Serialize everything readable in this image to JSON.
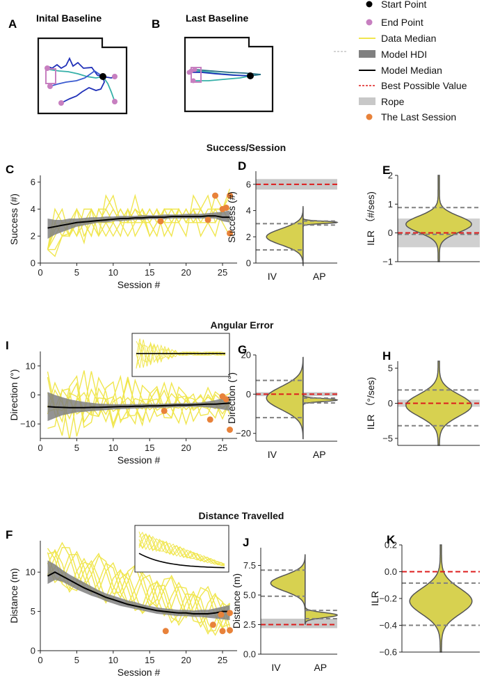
{
  "colors": {
    "yellow": "#f0e64e",
    "gray": "#808080",
    "black": "#000000",
    "red": "#dd1c1c",
    "rope": "#c8c8c8",
    "orange": "#e8823a",
    "violin": "#d7d150",
    "end": "#c77fc0",
    "dkblue": "#2030b8",
    "teal": "#35b0a8"
  },
  "panels": {
    "A": {
      "letter": "A",
      "title": "Inital Baseline"
    },
    "B": {
      "letter": "B",
      "title": "Last Baseline"
    },
    "C": "C",
    "D": "D",
    "E": "E",
    "I": "I",
    "G": "G",
    "H": "H",
    "F": "F",
    "J": "J",
    "K": "K"
  },
  "legend": [
    {
      "label": "Start Point",
      "kind": "dot-black"
    },
    {
      "label": "End Point",
      "kind": "dot-pink"
    },
    {
      "label": "Data Median",
      "kind": "line-yellow"
    },
    {
      "label": "Model HDI",
      "kind": "band-gray"
    },
    {
      "label": "Model Median",
      "kind": "line-black"
    },
    {
      "label": "Best Possible Value",
      "kind": "dash-red"
    },
    {
      "label": "Rope",
      "kind": "band-light"
    },
    {
      "label": "The Last Session",
      "kind": "dot-orange"
    }
  ],
  "sections": {
    "success": "Success/Session",
    "angular": "Angular Error",
    "distance": "Distance Travelled"
  },
  "chart_data": [
    {
      "id": "C",
      "type": "line",
      "title": "Success/Session",
      "xlabel": "Session #",
      "ylabel": "Success (#)",
      "xlim": [
        0,
        27
      ],
      "ylim": [
        0,
        6.5
      ],
      "xticks": [
        0,
        5,
        10,
        15,
        20,
        25
      ],
      "yticks": [
        0,
        2,
        4,
        6
      ],
      "data_lines": [
        [
          1,
          3,
          2,
          2.2,
          3,
          1.5,
          4,
          2,
          5,
          4,
          3,
          3,
          4,
          3.5,
          2,
          3,
          4,
          4,
          3,
          2,
          5,
          4,
          3,
          4,
          4,
          5.5
        ],
        [
          1,
          1,
          2,
          3,
          2,
          3,
          2,
          4,
          3,
          2,
          3,
          4,
          2,
          3,
          4,
          3,
          3,
          2,
          4,
          3,
          3,
          4,
          5,
          3,
          4,
          4
        ],
        [
          1,
          4,
          3,
          2,
          4,
          3,
          3,
          2,
          3,
          4,
          3,
          2,
          3,
          4,
          2,
          3,
          4,
          3,
          4,
          3,
          4,
          2,
          3,
          4,
          3,
          2
        ],
        [
          1,
          2,
          3,
          3,
          2,
          4,
          4,
          3,
          2,
          3,
          4,
          3,
          5,
          3,
          3,
          4,
          2,
          3,
          3,
          4,
          3,
          4,
          3,
          5,
          4,
          3
        ],
        [
          1,
          3,
          4,
          2,
          3,
          3,
          2,
          4,
          4,
          3,
          2,
          4,
          3,
          3,
          4,
          3,
          3,
          4,
          4,
          3,
          4,
          3,
          4,
          4,
          4,
          4
        ],
        [
          1,
          2.5,
          3,
          3,
          4,
          2,
          3,
          3,
          4,
          5,
          3,
          3,
          4,
          3,
          3,
          2,
          4,
          4,
          3,
          4,
          3,
          3,
          3,
          3,
          4,
          5
        ],
        [
          1,
          0.5,
          2,
          2,
          3,
          3,
          4,
          3,
          3,
          3,
          4,
          3,
          3,
          4,
          3,
          4,
          3,
          3,
          4,
          3,
          4,
          4,
          3,
          2,
          4,
          4
        ]
      ],
      "model_median": [
        2.6,
        2.7,
        2.8,
        2.9,
        3,
        3.05,
        3.1,
        3.15,
        3.2,
        3.25,
        3.3,
        3.3,
        3.35,
        3.35,
        3.4,
        3.4,
        3.4,
        3.45,
        3.45,
        3.45,
        3.45,
        3.45,
        3.5,
        3.5,
        3.4,
        3.4
      ],
      "hdi_low": [
        1.8,
        2.1,
        2.3,
        2.5,
        2.7,
        2.8,
        2.9,
        3,
        3,
        3.1,
        3.1,
        3.15,
        3.2,
        3.2,
        3.25,
        3.25,
        3.25,
        3.3,
        3.3,
        3.3,
        3.3,
        3.3,
        3.3,
        3.3,
        3.1,
        3
      ],
      "hdi_high": [
        3.3,
        3.2,
        3.2,
        3.3,
        3.3,
        3.35,
        3.4,
        3.4,
        3.45,
        3.45,
        3.5,
        3.5,
        3.5,
        3.55,
        3.55,
        3.55,
        3.6,
        3.6,
        3.6,
        3.65,
        3.65,
        3.65,
        3.7,
        3.75,
        3.8,
        3.9
      ],
      "last_session": [
        [
          16.5,
          3.1
        ],
        [
          23,
          3.2
        ],
        [
          24,
          5
        ],
        [
          25,
          4
        ],
        [
          25.5,
          4.1
        ],
        [
          26,
          5
        ],
        [
          26,
          2.2
        ]
      ]
    },
    {
      "id": "D",
      "type": "violin",
      "xlabel_categories": [
        "IV",
        "AP"
      ],
      "ylabel": "Success (#)",
      "ylim": [
        0,
        7
      ],
      "yticks": [
        0,
        2,
        4,
        6
      ],
      "best_value": 6,
      "rope": [
        5.6,
        6.4
      ],
      "iv_hdi": [
        1,
        3
      ],
      "ap_hdi": [
        2.9,
        3.2
      ],
      "iv_center": 2,
      "ap_center": 3.1
    },
    {
      "id": "E",
      "type": "violin",
      "ylabel": "ILR （#/ses)",
      "ylim": [
        -1,
        2
      ],
      "yticks": [
        -1,
        0,
        1,
        2
      ],
      "best_value": 0,
      "rope": [
        -0.5,
        0.5
      ],
      "hdi": [
        -0.05,
        0.88
      ],
      "center": 0.3
    },
    {
      "id": "I",
      "type": "line",
      "title": "Angular Error",
      "xlabel": "Session #",
      "ylabel": "Direction (°)",
      "xlim": [
        0,
        27
      ],
      "ylim": [
        -15,
        15
      ],
      "xticks": [
        0,
        5,
        10,
        15,
        20,
        25
      ],
      "yticks": [
        -10,
        0,
        10
      ],
      "model_median": [
        -4,
        -4.2,
        -4.3,
        -4.4,
        -4.4,
        -4.4,
        -4.3,
        -4.3,
        -4.2,
        -4.1,
        -4,
        -4,
        -3.9,
        -3.9,
        -3.8,
        -3.8,
        -3.7,
        -3.6,
        -3.5,
        -3.5,
        -3.4,
        -3.3,
        -3.2,
        -3.2,
        -3,
        -2.8
      ],
      "hdi_low": [
        -9,
        -8,
        -7,
        -6.5,
        -6,
        -5.8,
        -5.6,
        -5.4,
        -5.2,
        -5,
        -4.9,
        -4.8,
        -4.7,
        -4.6,
        -4.5,
        -4.5,
        -4.4,
        -4.3,
        -4.2,
        -4.2,
        -4.1,
        -4.1,
        -4.3,
        -4.6,
        -5,
        -5.5
      ],
      "hdi_high": [
        1,
        0,
        -0.8,
        -1.5,
        -2,
        -2.4,
        -2.7,
        -3,
        -3.1,
        -3.2,
        -3.2,
        -3.2,
        -3.2,
        -3.1,
        -3.1,
        -3.1,
        -3,
        -2.9,
        -2.8,
        -2.8,
        -2.7,
        -2.6,
        -2.2,
        -1.8,
        -1.2,
        -0.5
      ],
      "last_session": [
        [
          17,
          -5.5
        ],
        [
          23.3,
          -8.5
        ],
        [
          25,
          -0.5
        ],
        [
          25.5,
          -1.5
        ],
        [
          26,
          -12
        ]
      ],
      "inset": "I-inset"
    },
    {
      "id": "G",
      "type": "violin",
      "xlabel_categories": [
        "IV",
        "AP"
      ],
      "ylabel": "Direction (°)",
      "ylim": [
        -24,
        20
      ],
      "yticks": [
        -20,
        0,
        20
      ],
      "best_value": 0,
      "rope": [
        -1,
        1
      ],
      "iv_hdi": [
        -12,
        7
      ],
      "ap_hdi": [
        -4.5,
        -2
      ],
      "iv_center": -2,
      "ap_center": -3
    },
    {
      "id": "H",
      "type": "violin",
      "ylabel": "ILR （°/ses)",
      "ylim": [
        -6,
        6
      ],
      "yticks": [
        -5,
        0,
        5
      ],
      "best_value": 0,
      "rope": [
        -0.5,
        0.5
      ],
      "hdi": [
        -3.2,
        1.9
      ],
      "center": -0.3
    },
    {
      "id": "F",
      "type": "line",
      "title": "Distance Travelled",
      "xlabel": "Session #",
      "ylabel": "Distance (m)",
      "xlim": [
        0,
        27
      ],
      "ylim": [
        0,
        14
      ],
      "xticks": [
        0,
        5,
        10,
        15,
        20,
        25
      ],
      "yticks": [
        0,
        5,
        10
      ],
      "model_median": [
        9.5,
        10,
        9.5,
        9,
        8.5,
        8,
        7.6,
        7.2,
        6.8,
        6.5,
        6.2,
        5.9,
        5.7,
        5.5,
        5.3,
        5.1,
        5,
        4.9,
        4.8,
        4.8,
        4.7,
        4.7,
        4.7,
        4.8,
        5,
        5
      ],
      "hdi_low": [
        8.5,
        9,
        8.8,
        8.3,
        7.8,
        7.4,
        7,
        6.7,
        6.3,
        6,
        5.7,
        5.5,
        5.3,
        5.1,
        4.9,
        4.7,
        4.6,
        4.5,
        4.4,
        4.4,
        4.3,
        4.3,
        4.2,
        4.1,
        4,
        3.9
      ],
      "hdi_high": [
        11.5,
        11,
        10.3,
        9.7,
        9.2,
        8.7,
        8.2,
        7.7,
        7.3,
        7,
        6.7,
        6.4,
        6.2,
        5.9,
        5.7,
        5.5,
        5.4,
        5.3,
        5.2,
        5.2,
        5.1,
        5.2,
        5.2,
        5.4,
        5.6,
        5.8
      ],
      "last_session": [
        [
          17.2,
          2.5
        ],
        [
          23.7,
          3.3
        ],
        [
          24.8,
          4.6
        ],
        [
          25,
          2.5
        ],
        [
          26,
          4.8
        ],
        [
          26,
          2.6
        ]
      ],
      "inset": "F-inset"
    },
    {
      "id": "J",
      "type": "violin",
      "xlabel_categories": [
        "IV",
        "AP"
      ],
      "ylabel": "Distance (m)",
      "ylim": [
        0,
        9
      ],
      "yticks": [
        0,
        2.5,
        5,
        7.5
      ],
      "yticklabels": [
        "0.0",
        "2.5",
        "5.0",
        "7.5"
      ],
      "best_value": 2.5,
      "rope": [
        2.2,
        3
      ],
      "iv_hdi": [
        4.9,
        7.1
      ],
      "ap_hdi": [
        3,
        3.7
      ],
      "iv_center": 6,
      "ap_center": 3.3
    },
    {
      "id": "K",
      "type": "violin",
      "ylabel": "ILR",
      "ylim": [
        -0.6,
        0.2
      ],
      "yticks": [
        -0.6,
        -0.4,
        -0.2,
        0,
        0.2
      ],
      "yticklabels": [
        "−0.6",
        "−0.4",
        "−0.2",
        "0.0",
        "0.2"
      ],
      "best_value": 0,
      "hdi": [
        -0.4,
        -0.085
      ],
      "center": -0.22
    }
  ]
}
